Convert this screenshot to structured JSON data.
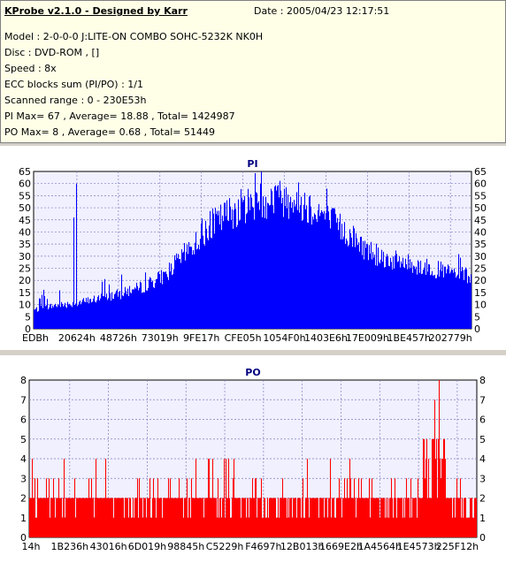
{
  "info": {
    "title": "KProbe v2.1.0 - Designed by Karr",
    "date": "Date : 2005/04/23 12:17:51",
    "lines": [
      "Model : 2-0-0-0 J:LITE-ON COMBO SOHC-5232K NK0H",
      "Disc : DVD-ROM ,  []",
      "Speed : 8x",
      "ECC blocks sum (PI/PO) : 1/1",
      "Scanned range : 0 - 230E53h",
      "PI Max= 67 , Average= 18.88 , Total= 1424987",
      "PO Max= 8 , Average= 0.68 , Total= 51449"
    ]
  },
  "chart_data": [
    {
      "type": "bar",
      "title": "PI",
      "color": "#0000ff",
      "ylim": [
        0,
        65
      ],
      "yticks": [
        0,
        5,
        10,
        15,
        20,
        25,
        30,
        35,
        40,
        45,
        50,
        55,
        60,
        65
      ],
      "xtick_labels": [
        "EDBh",
        "20624h",
        "48726h",
        "73019h",
        "9FE17h",
        "CFE05h",
        "1054F0h",
        "1403E6h",
        "17E009h",
        "1BE457h",
        "202779h"
      ],
      "grid": true,
      "envelope_x": [
        0,
        0.05,
        0.1,
        0.15,
        0.2,
        0.25,
        0.3,
        0.35,
        0.4,
        0.45,
        0.5,
        0.55,
        0.6,
        0.65,
        0.7,
        0.75,
        0.8,
        0.85,
        0.9,
        0.95,
        1.0
      ],
      "envelope_y": [
        8,
        10,
        11,
        13,
        15,
        18,
        23,
        33,
        43,
        50,
        54,
        56,
        55,
        50,
        43,
        35,
        30,
        28,
        26,
        24,
        22
      ],
      "spikes": [
        {
          "x": 0.097,
          "y": 60
        },
        {
          "x": 0.091,
          "y": 46
        },
        {
          "x": 0.52,
          "y": 67
        }
      ]
    },
    {
      "type": "bar",
      "title": "PO",
      "color": "#ff0000",
      "ylim": [
        0,
        8
      ],
      "yticks": [
        0,
        1,
        2,
        3,
        4,
        5,
        6,
        7,
        8
      ],
      "xtick_labels": [
        "14h",
        "1B236h",
        "43016h",
        "6D019h",
        "98845h",
        "C5229h",
        "F4697h",
        "12B013h",
        "1669E2h",
        "1A4564h",
        "1E4573h",
        "225F12h"
      ],
      "grid": true,
      "spikes": [
        {
          "x": 0.915,
          "y": 8
        },
        {
          "x": 0.905,
          "y": 7
        },
        {
          "x": 0.88,
          "y": 5
        },
        {
          "x": 0.62,
          "y": 4
        },
        {
          "x": 0.4,
          "y": 4
        }
      ]
    }
  ]
}
